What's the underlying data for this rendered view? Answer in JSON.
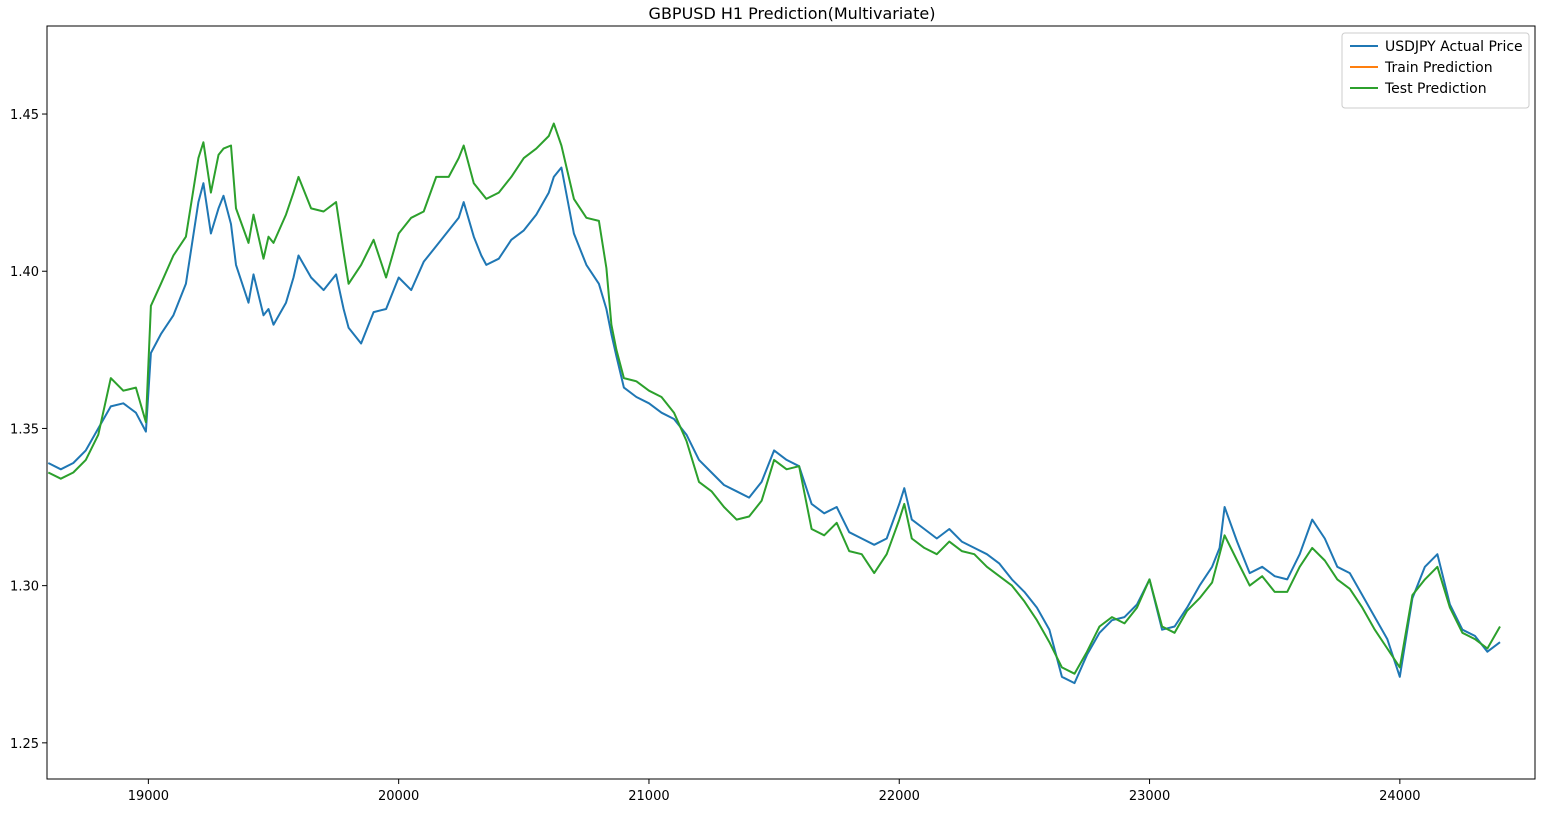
{
  "chart_data": {
    "type": "line",
    "title": "GBPUSD H1 Prediction(Multivariate)",
    "xlabel": "",
    "ylabel": "",
    "xlim": [
      18595,
      24540
    ],
    "ylim": [
      1.2385,
      1.478
    ],
    "xticks": [
      19000,
      20000,
      21000,
      22000,
      23000,
      24000
    ],
    "xtick_labels": [
      "19000",
      "20000",
      "21000",
      "22000",
      "23000",
      "24000"
    ],
    "yticks": [
      1.25,
      1.3,
      1.35,
      1.4,
      1.45
    ],
    "ytick_labels": [
      "1.25",
      "1.30",
      "1.35",
      "1.40",
      "1.45"
    ],
    "grid": false,
    "legend_position": "top-right",
    "series": [
      {
        "name": "USDJPY Actual Price",
        "color": "#1f77b4",
        "x": [
          18600,
          18650,
          18700,
          18750,
          18800,
          18850,
          18900,
          18950,
          18990,
          19010,
          19050,
          19100,
          19150,
          19200,
          19220,
          19250,
          19280,
          19300,
          19330,
          19350,
          19400,
          19420,
          19460,
          19480,
          19500,
          19550,
          19580,
          19600,
          19650,
          19700,
          19750,
          19780,
          19800,
          19850,
          19900,
          19950,
          20000,
          20050,
          20100,
          20150,
          20200,
          20240,
          20260,
          20300,
          20330,
          20350,
          20400,
          20450,
          20500,
          20550,
          20600,
          20620,
          20650,
          20700,
          20750,
          20800,
          20830,
          20850,
          20870,
          20900,
          20950,
          21000,
          21050,
          21100,
          21150,
          21200,
          21250,
          21300,
          21350,
          21400,
          21450,
          21500,
          21550,
          21600,
          21650,
          21700,
          21750,
          21800,
          21850,
          21900,
          21950,
          22000,
          22020,
          22050,
          22100,
          22150,
          22200,
          22250,
          22300,
          22350,
          22400,
          22450,
          22500,
          22550,
          22600,
          22650,
          22700,
          22750,
          22800,
          22850,
          22900,
          22950,
          23000,
          23050,
          23100,
          23150,
          23200,
          23250,
          23280,
          23300,
          23350,
          23400,
          23450,
          23500,
          23550,
          23600,
          23650,
          23700,
          23750,
          23800,
          23850,
          23900,
          23950,
          24000,
          24050,
          24100,
          24150,
          24200,
          24250,
          24300,
          24350,
          24400
        ],
        "values": [
          1.339,
          1.337,
          1.339,
          1.343,
          1.35,
          1.357,
          1.358,
          1.355,
          1.349,
          1.374,
          1.38,
          1.386,
          1.396,
          1.422,
          1.428,
          1.412,
          1.42,
          1.424,
          1.415,
          1.402,
          1.39,
          1.399,
          1.386,
          1.388,
          1.383,
          1.39,
          1.398,
          1.405,
          1.398,
          1.394,
          1.399,
          1.388,
          1.382,
          1.377,
          1.387,
          1.388,
          1.398,
          1.394,
          1.403,
          1.408,
          1.413,
          1.417,
          1.422,
          1.411,
          1.405,
          1.402,
          1.404,
          1.41,
          1.413,
          1.418,
          1.425,
          1.43,
          1.433,
          1.412,
          1.402,
          1.396,
          1.388,
          1.38,
          1.373,
          1.363,
          1.36,
          1.358,
          1.355,
          1.353,
          1.348,
          1.34,
          1.336,
          1.332,
          1.33,
          1.328,
          1.333,
          1.343,
          1.34,
          1.338,
          1.326,
          1.323,
          1.325,
          1.317,
          1.315,
          1.313,
          1.315,
          1.326,
          1.331,
          1.321,
          1.318,
          1.315,
          1.318,
          1.314,
          1.312,
          1.31,
          1.307,
          1.302,
          1.298,
          1.293,
          1.286,
          1.271,
          1.269,
          1.278,
          1.285,
          1.289,
          1.29,
          1.294,
          1.302,
          1.286,
          1.287,
          1.293,
          1.3,
          1.306,
          1.312,
          1.325,
          1.314,
          1.304,
          1.306,
          1.303,
          1.302,
          1.31,
          1.321,
          1.315,
          1.306,
          1.304,
          1.297,
          1.29,
          1.283,
          1.271,
          1.296,
          1.306,
          1.31,
          1.294,
          1.286,
          1.284,
          1.279,
          1.282
        ]
      },
      {
        "name": "Train Prediction",
        "color": "#ff7f0e",
        "x": [],
        "values": []
      },
      {
        "name": "Test Prediction",
        "color": "#2ca02c",
        "x": [
          18600,
          18650,
          18700,
          18750,
          18800,
          18850,
          18900,
          18950,
          18990,
          19010,
          19050,
          19100,
          19150,
          19200,
          19220,
          19250,
          19280,
          19300,
          19330,
          19350,
          19400,
          19420,
          19460,
          19480,
          19500,
          19550,
          19580,
          19600,
          19650,
          19700,
          19750,
          19780,
          19800,
          19850,
          19900,
          19950,
          20000,
          20050,
          20100,
          20150,
          20200,
          20240,
          20260,
          20300,
          20330,
          20350,
          20400,
          20450,
          20500,
          20550,
          20600,
          20620,
          20650,
          20700,
          20750,
          20800,
          20830,
          20850,
          20870,
          20900,
          20950,
          21000,
          21050,
          21100,
          21150,
          21200,
          21250,
          21300,
          21350,
          21400,
          21450,
          21500,
          21550,
          21600,
          21650,
          21700,
          21750,
          21800,
          21850,
          21900,
          21950,
          22000,
          22020,
          22050,
          22100,
          22150,
          22200,
          22250,
          22300,
          22350,
          22400,
          22450,
          22500,
          22550,
          22600,
          22650,
          22700,
          22750,
          22800,
          22850,
          22900,
          22950,
          23000,
          23050,
          23100,
          23150,
          23200,
          23250,
          23280,
          23300,
          23350,
          23400,
          23450,
          23500,
          23550,
          23600,
          23650,
          23700,
          23750,
          23800,
          23850,
          23900,
          23950,
          24000,
          24050,
          24100,
          24150,
          24200,
          24250,
          24300,
          24350,
          24400
        ],
        "values": [
          1.336,
          1.334,
          1.336,
          1.34,
          1.348,
          1.366,
          1.362,
          1.363,
          1.352,
          1.389,
          1.396,
          1.405,
          1.411,
          1.436,
          1.441,
          1.425,
          1.437,
          1.439,
          1.44,
          1.42,
          1.409,
          1.418,
          1.404,
          1.411,
          1.409,
          1.418,
          1.425,
          1.43,
          1.42,
          1.419,
          1.422,
          1.406,
          1.396,
          1.402,
          1.41,
          1.398,
          1.412,
          1.417,
          1.419,
          1.43,
          1.43,
          1.436,
          1.44,
          1.428,
          1.425,
          1.423,
          1.425,
          1.43,
          1.436,
          1.439,
          1.443,
          1.447,
          1.44,
          1.423,
          1.417,
          1.416,
          1.401,
          1.383,
          1.375,
          1.366,
          1.365,
          1.362,
          1.36,
          1.355,
          1.346,
          1.333,
          1.33,
          1.325,
          1.321,
          1.322,
          1.327,
          1.34,
          1.337,
          1.338,
          1.318,
          1.316,
          1.32,
          1.311,
          1.31,
          1.304,
          1.31,
          1.321,
          1.326,
          1.315,
          1.312,
          1.31,
          1.314,
          1.311,
          1.31,
          1.306,
          1.303,
          1.3,
          1.295,
          1.289,
          1.282,
          1.274,
          1.272,
          1.279,
          1.287,
          1.29,
          1.288,
          1.293,
          1.302,
          1.287,
          1.285,
          1.292,
          1.296,
          1.301,
          1.31,
          1.316,
          1.308,
          1.3,
          1.303,
          1.298,
          1.298,
          1.306,
          1.312,
          1.308,
          1.302,
          1.299,
          1.293,
          1.286,
          1.28,
          1.274,
          1.297,
          1.302,
          1.306,
          1.293,
          1.285,
          1.283,
          1.28,
          1.287
        ]
      }
    ]
  }
}
